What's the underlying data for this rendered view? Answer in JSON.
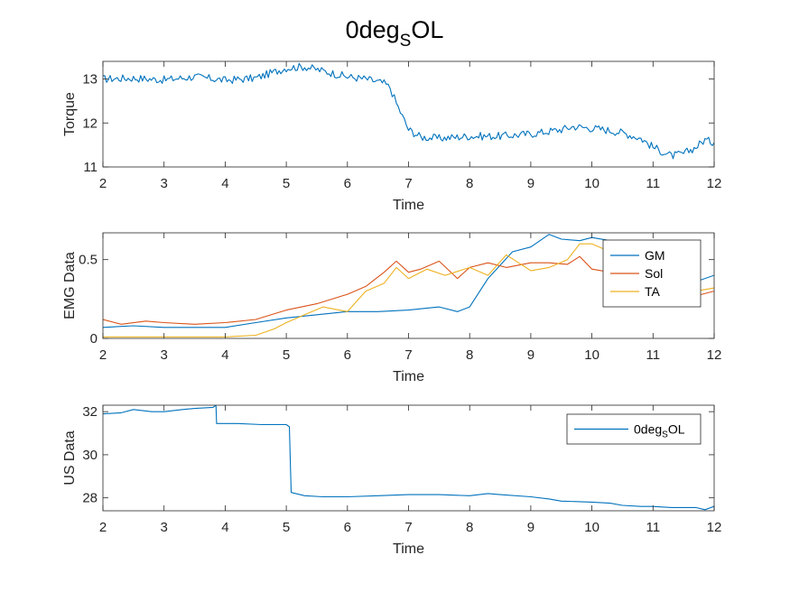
{
  "figure": {
    "title_main": "0deg",
    "title_sub": "S",
    "title_tail": "OL"
  },
  "colors": {
    "blue": "#0072BD",
    "orange": "#D95319",
    "yellow": "#EDB120",
    "axis": "#262626"
  },
  "chart_data": [
    {
      "type": "line",
      "xlabel": "Time",
      "ylabel": "Torque",
      "xlim": [
        2,
        12
      ],
      "ylim": [
        11,
        13.4
      ],
      "xticks": [
        2,
        3,
        4,
        5,
        6,
        7,
        8,
        9,
        10,
        11,
        12
      ],
      "yticks": [
        11,
        12,
        13
      ],
      "noise": 0.09,
      "series": [
        {
          "color": "blue",
          "x": [
            2,
            2.5,
            3,
            3.5,
            4,
            4.5,
            5,
            5.3,
            5.7,
            6,
            6.3,
            6.6,
            6.7,
            6.8,
            6.9,
            7,
            7.2,
            7.5,
            8,
            8.5,
            9,
            9.5,
            9.7,
            10,
            10.2,
            10.5,
            10.8,
            11,
            11.3,
            11.5,
            11.7,
            11.85,
            12
          ],
          "y": [
            13.0,
            13.02,
            12.98,
            13.05,
            12.97,
            13.02,
            13.25,
            13.28,
            13.15,
            13.05,
            13.0,
            12.9,
            12.8,
            12.45,
            12.15,
            11.85,
            11.68,
            11.65,
            11.7,
            11.7,
            11.75,
            11.85,
            11.92,
            11.88,
            11.85,
            11.78,
            11.65,
            11.45,
            11.25,
            11.3,
            11.45,
            11.62,
            11.55
          ]
        }
      ]
    },
    {
      "type": "line",
      "xlabel": "Time",
      "ylabel": "EMG Data",
      "xlim": [
        2,
        12
      ],
      "ylim": [
        0,
        0.67
      ],
      "xticks": [
        2,
        3,
        4,
        5,
        6,
        7,
        8,
        9,
        10,
        11,
        12
      ],
      "yticks": [
        0,
        0.5
      ],
      "legend": {
        "location": "top-right",
        "entries": [
          "GM",
          "Sol",
          "TA"
        ]
      },
      "series": [
        {
          "name": "GM",
          "color": "blue",
          "x": [
            2,
            2.5,
            3,
            3.5,
            4,
            4.5,
            5,
            5.5,
            6,
            6.5,
            7,
            7.5,
            7.8,
            8,
            8.3,
            8.7,
            9,
            9.3,
            9.5,
            9.8,
            10,
            10.3,
            10.7,
            11,
            11.3,
            11.7,
            12
          ],
          "y": [
            0.07,
            0.08,
            0.07,
            0.07,
            0.07,
            0.1,
            0.13,
            0.15,
            0.17,
            0.17,
            0.18,
            0.2,
            0.17,
            0.2,
            0.38,
            0.55,
            0.58,
            0.66,
            0.63,
            0.62,
            0.64,
            0.62,
            0.58,
            0.5,
            0.45,
            0.36,
            0.4
          ]
        },
        {
          "name": "Sol",
          "color": "orange",
          "x": [
            2,
            2.3,
            2.7,
            3,
            3.5,
            4,
            4.5,
            5,
            5.5,
            6,
            6.3,
            6.6,
            6.8,
            7,
            7.2,
            7.5,
            7.8,
            8,
            8.3,
            8.6,
            9,
            9.3,
            9.6,
            9.8,
            10,
            10.3,
            10.6,
            11,
            11.3,
            11.7,
            12
          ],
          "y": [
            0.12,
            0.09,
            0.11,
            0.1,
            0.09,
            0.1,
            0.12,
            0.18,
            0.22,
            0.28,
            0.33,
            0.42,
            0.49,
            0.42,
            0.44,
            0.49,
            0.38,
            0.45,
            0.48,
            0.45,
            0.48,
            0.48,
            0.47,
            0.52,
            0.44,
            0.42,
            0.36,
            0.3,
            0.33,
            0.27,
            0.3
          ]
        },
        {
          "name": "TA",
          "color": "yellow",
          "x": [
            2,
            3,
            4,
            4.5,
            4.8,
            5,
            5.3,
            5.6,
            6,
            6.3,
            6.6,
            6.8,
            7,
            7.3,
            7.6,
            8,
            8.3,
            8.6,
            9,
            9.3,
            9.6,
            9.8,
            10,
            10.3,
            10.6,
            11,
            11.3,
            11.7,
            12
          ],
          "y": [
            0.01,
            0.01,
            0.01,
            0.02,
            0.06,
            0.1,
            0.15,
            0.2,
            0.17,
            0.3,
            0.35,
            0.45,
            0.38,
            0.44,
            0.4,
            0.45,
            0.4,
            0.53,
            0.43,
            0.45,
            0.5,
            0.6,
            0.6,
            0.55,
            0.52,
            0.45,
            0.38,
            0.3,
            0.32
          ]
        }
      ]
    },
    {
      "type": "line",
      "xlabel": "Time",
      "ylabel": "US Data",
      "xlim": [
        2,
        12
      ],
      "ylim": [
        27.4,
        32.3
      ],
      "xticks": [
        2,
        3,
        4,
        5,
        6,
        7,
        8,
        9,
        10,
        11,
        12
      ],
      "yticks": [
        28,
        30,
        32
      ],
      "legend": {
        "location": "top-right",
        "entries": [
          "0degSOL"
        ],
        "entry_main": "0deg",
        "entry_sub": "S",
        "entry_tail": "OL"
      },
      "series": [
        {
          "color": "blue",
          "x": [
            2,
            2.3,
            2.5,
            2.8,
            3,
            3.3,
            3.5,
            3.8,
            3.85,
            3.86,
            4.2,
            4.6,
            5.0,
            5.05,
            5.08,
            5.3,
            5.6,
            6,
            6.5,
            7,
            7.5,
            8,
            8.3,
            8.5,
            9,
            9.3,
            9.5,
            10,
            10.3,
            10.5,
            10.8,
            11,
            11.3,
            11.7,
            11.85,
            12
          ],
          "y": [
            31.9,
            31.95,
            32.1,
            32.0,
            32.0,
            32.1,
            32.15,
            32.2,
            32.3,
            31.45,
            31.45,
            31.4,
            31.4,
            31.3,
            28.25,
            28.1,
            28.05,
            28.05,
            28.1,
            28.15,
            28.15,
            28.1,
            28.2,
            28.15,
            28.05,
            27.95,
            27.85,
            27.8,
            27.75,
            27.65,
            27.6,
            27.6,
            27.55,
            27.55,
            27.45,
            27.6
          ]
        }
      ]
    }
  ]
}
